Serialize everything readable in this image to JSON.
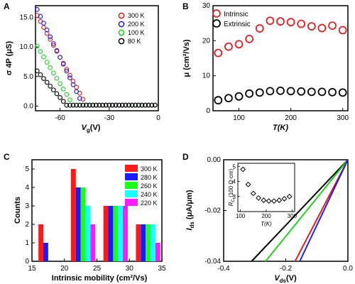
{
  "panels": {
    "a": "A",
    "b": "B",
    "c": "C",
    "d": "D"
  },
  "chart_data": [
    {
      "panel": "A",
      "type": "scatter",
      "xlabel_main": "V",
      "xlabel_sub": "g",
      "xlabel_unit": "(V)",
      "ylabel": "σ 4P (μS)",
      "xlim": [
        -75,
        0
      ],
      "ylim": [
        -0.8,
        17
      ],
      "xticks": [
        -60,
        -30,
        0
      ],
      "yticks": [
        0.0,
        5.0,
        10.0,
        15.0
      ],
      "ytick_labels": [
        "0.0",
        "5.0",
        "10.0",
        "15.0"
      ],
      "legend_position": "top-right",
      "series": [
        {
          "name": "300 K",
          "color": "#e02020",
          "vth": -44,
          "v0": -74,
          "y0": 15.2
        },
        {
          "name": "200 K",
          "color": "#2020e0",
          "vth": -46,
          "v0": -74,
          "y0": 16.2
        },
        {
          "name": "100 K",
          "color": "#20d020",
          "vth": -52,
          "v0": -74,
          "y0": 10.0
        },
        {
          "name": "80 K",
          "color": "#000000",
          "vth": -56,
          "v0": -74,
          "y0": 5.8
        }
      ]
    },
    {
      "panel": "B",
      "type": "scatter",
      "xlabel": "T(K)",
      "ylabel": "μ (cm²/Vs)",
      "xlim": [
        50,
        310
      ],
      "ylim": [
        0,
        30
      ],
      "xticks": [
        100,
        200,
        300
      ],
      "yticks": [
        0,
        10,
        20,
        30
      ],
      "legend_position": "top-left",
      "series": [
        {
          "name": "Intrinsic",
          "color": "#e02020",
          "x": [
            60,
            80,
            100,
            120,
            140,
            160,
            180,
            200,
            220,
            240,
            260,
            280,
            300
          ],
          "y": [
            16.5,
            18.3,
            19.0,
            20.5,
            23.5,
            25.7,
            25.5,
            25.3,
            24.8,
            24.1,
            23.6,
            24.3,
            23.0
          ]
        },
        {
          "name": "Extrinsic",
          "color": "#000000",
          "x": [
            60,
            80,
            100,
            120,
            140,
            160,
            180,
            200,
            220,
            240,
            260,
            280,
            300
          ],
          "y": [
            3.0,
            3.6,
            4.1,
            4.9,
            5.2,
            5.6,
            5.7,
            5.6,
            5.5,
            5.4,
            5.4,
            5.3,
            5.2
          ]
        }
      ]
    },
    {
      "panel": "C",
      "type": "bar",
      "xlabel": "Intrinsic mobility (cm²/Vs)",
      "ylabel": "Counts",
      "xlim": [
        15,
        35
      ],
      "ylim": [
        0,
        5.5
      ],
      "xticks": [
        15,
        20,
        25,
        30,
        35
      ],
      "yticks": [
        0,
        1,
        2,
        3,
        4,
        5
      ],
      "legend_position": "top-right",
      "bin_centers": [
        17,
        22,
        27,
        32
      ],
      "series": [
        {
          "name": "300 K",
          "color": "#ff1a1a",
          "values": [
            2,
            5,
            3,
            2
          ]
        },
        {
          "name": "280 K",
          "color": "#1a1aff",
          "values": [
            1,
            4,
            3,
            2
          ]
        },
        {
          "name": "260 K",
          "color": "#1aff1a",
          "values": [
            0,
            4,
            3,
            2
          ]
        },
        {
          "name": "240 K",
          "color": "#1affff",
          "values": [
            0,
            3,
            3,
            2
          ]
        },
        {
          "name": "220 K",
          "color": "#ff1aff",
          "values": [
            0,
            2,
            3,
            1
          ]
        }
      ]
    },
    {
      "panel": "D",
      "type": "line",
      "xlabel_main": "V",
      "xlabel_sub": "ds",
      "xlabel_unit": "(V)",
      "ylabel_main": "I",
      "ylabel_sub": "ds",
      "ylabel_unit": " (μA/μm)",
      "xlim": [
        -0.4,
        0.0
      ],
      "ylim": [
        -0.04,
        0.0
      ],
      "xticks": [
        -0.4,
        -0.2,
        0.0
      ],
      "xtick_labels": [
        "-0.4",
        "-0.2",
        "0.0"
      ],
      "yticks": [
        -0.04,
        -0.02,
        0.0
      ],
      "ytick_labels": [
        "-0.04",
        "-0.02",
        "0.00"
      ],
      "series": [
        {
          "color": "#000000",
          "x": [
            -0.31,
            0.0
          ],
          "y": [
            -0.04,
            0.0
          ]
        },
        {
          "color": "#20d020",
          "x": [
            -0.265,
            0.0
          ],
          "y": [
            -0.04,
            0.0
          ]
        },
        {
          "color": "#e02020",
          "x": [
            -0.17,
            0.0
          ],
          "y": [
            -0.04,
            0.0
          ]
        },
        {
          "color": "#2020e0",
          "x": [
            -0.155,
            0.0
          ],
          "y": [
            -0.04,
            0.0
          ]
        }
      ],
      "inset": {
        "type": "scatter",
        "xlabel": "T(K)",
        "ylabel_main": "R",
        "ylabel_sub": "C",
        "ylabel_unit": " (100 Ω·cm)",
        "xlim": [
          90,
          310
        ],
        "ylim": [
          2,
          5.2
        ],
        "xticks": [
          100,
          200,
          300
        ],
        "yticks": [
          3,
          4,
          5
        ],
        "x": [
          110,
          130,
          150,
          170,
          190,
          210,
          230,
          250,
          270,
          290
        ],
        "y": [
          4.8,
          3.8,
          3.2,
          2.9,
          2.75,
          2.7,
          2.7,
          2.75,
          2.85,
          3.0
        ]
      }
    }
  ]
}
